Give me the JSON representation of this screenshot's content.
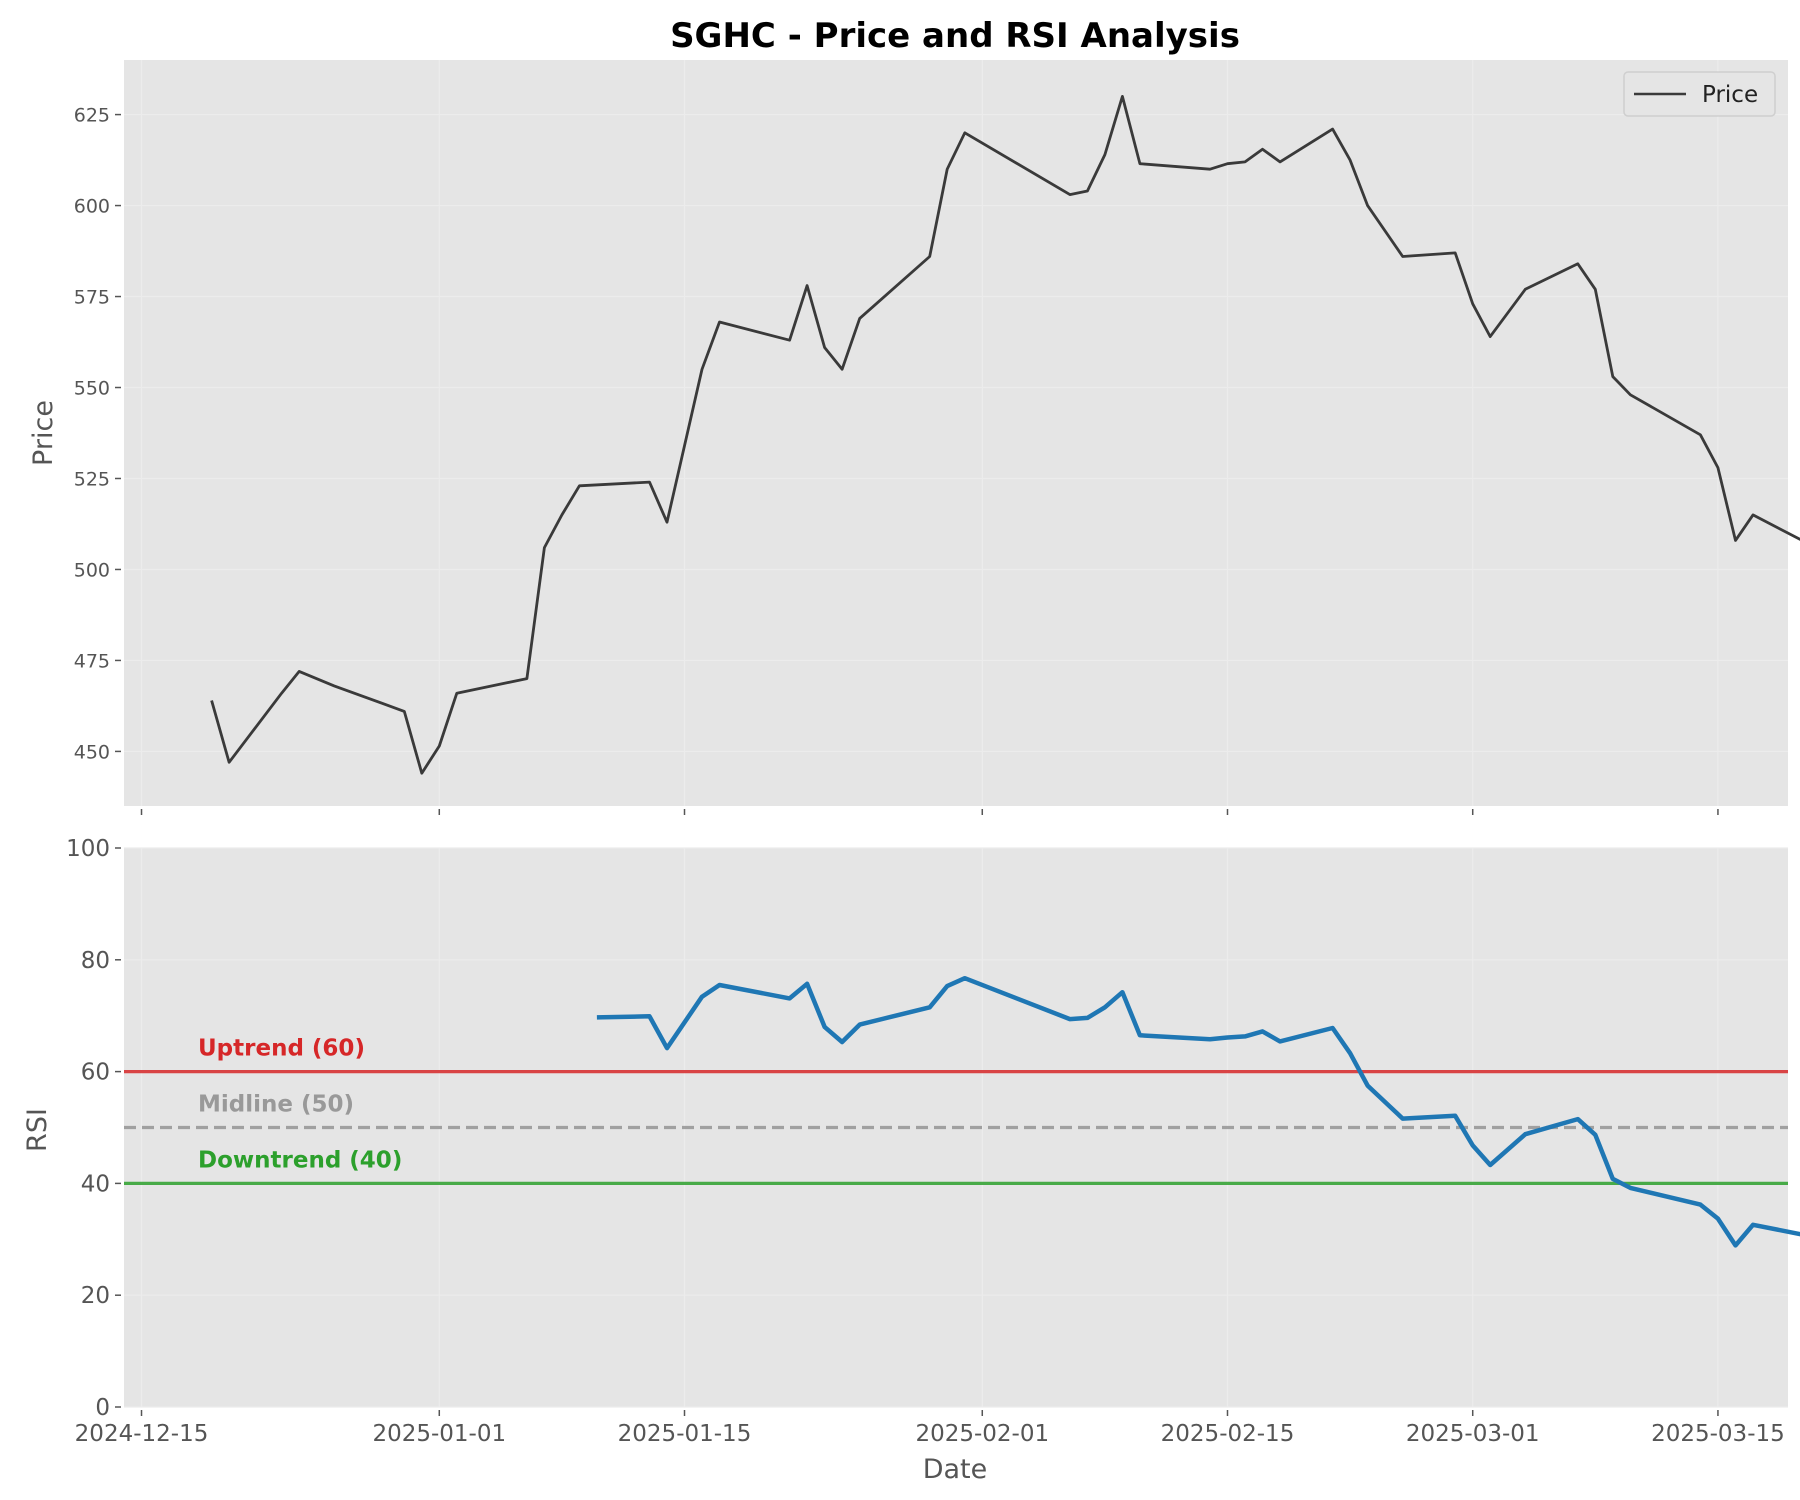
{
  "chart_data": [
    {
      "type": "line",
      "title": "SGHC - Price and RSI Analysis",
      "xlabel": "",
      "ylabel": "Price",
      "ylim": [
        435,
        640
      ],
      "yticks": [
        450,
        475,
        500,
        525,
        550,
        575,
        600,
        625
      ],
      "grid": true,
      "legend": "top-right",
      "series": [
        {
          "name": "Price",
          "color": "#3a3a3a",
          "points": [
            [
              "2024-12-19",
              464
            ],
            [
              "2024-12-20",
              447
            ],
            [
              "2024-12-23",
              466
            ],
            [
              "2024-12-24",
              472
            ],
            [
              "2024-12-26",
              468
            ],
            [
              "2024-12-30",
              461
            ],
            [
              "2024-12-31",
              444
            ],
            [
              "2025-01-01",
              451.5
            ],
            [
              "2025-01-02",
              466
            ],
            [
              "2025-01-06",
              470
            ],
            [
              "2025-01-07",
              506
            ],
            [
              "2025-01-08",
              515
            ],
            [
              "2025-01-09",
              523
            ],
            [
              "2025-01-13",
              524
            ],
            [
              "2025-01-14",
              513
            ],
            [
              "2025-01-16",
              555
            ],
            [
              "2025-01-17",
              568
            ],
            [
              "2025-01-21",
              563
            ],
            [
              "2025-01-22",
              578
            ],
            [
              "2025-01-23",
              561
            ],
            [
              "2025-01-24",
              555
            ],
            [
              "2025-01-25",
              569
            ],
            [
              "2025-01-29",
              586
            ],
            [
              "2025-01-30",
              610
            ],
            [
              "2025-01-31",
              620
            ],
            [
              "2025-02-06",
              603
            ],
            [
              "2025-02-07",
              604
            ],
            [
              "2025-02-08",
              614
            ],
            [
              "2025-02-09",
              630
            ],
            [
              "2025-02-10",
              611.5
            ],
            [
              "2025-02-14",
              610
            ],
            [
              "2025-02-15",
              611.5
            ],
            [
              "2025-02-16",
              612
            ],
            [
              "2025-02-17",
              615.5
            ],
            [
              "2025-02-18",
              612
            ],
            [
              "2025-02-21",
              621
            ],
            [
              "2025-02-22",
              612.5
            ],
            [
              "2025-02-23",
              600
            ],
            [
              "2025-02-25",
              586
            ],
            [
              "2025-02-28",
              587
            ],
            [
              "2025-03-01",
              573
            ],
            [
              "2025-03-02",
              564
            ],
            [
              "2025-03-04",
              577
            ],
            [
              "2025-03-07",
              584
            ],
            [
              "2025-03-08",
              577
            ],
            [
              "2025-03-09",
              553
            ],
            [
              "2025-03-10",
              548
            ],
            [
              "2025-03-14",
              537
            ],
            [
              "2025-03-15",
              528
            ],
            [
              "2025-03-16",
              508
            ],
            [
              "2025-03-17",
              515
            ],
            [
              "2025-03-21",
              505
            ]
          ]
        }
      ]
    },
    {
      "type": "line",
      "title": "",
      "xlabel": "Date",
      "ylabel": "RSI",
      "ylim": [
        0,
        100
      ],
      "yticks": [
        0,
        20,
        40,
        60,
        80,
        100
      ],
      "xticks": [
        "2024-12-15",
        "2025-01-01",
        "2025-01-15",
        "2025-02-01",
        "2025-02-15",
        "2025-03-01",
        "2025-03-15"
      ],
      "xlim": [
        "2024-12-14",
        "2025-03-19"
      ],
      "grid": true,
      "series": [
        {
          "name": "",
          "color": "#1f77b4",
          "points": [
            [
              "2025-01-10",
              69.7
            ],
            [
              "2025-01-13",
              69.9
            ],
            [
              "2025-01-14",
              64.2
            ],
            [
              "2025-01-16",
              73.4
            ],
            [
              "2025-01-17",
              75.5
            ],
            [
              "2025-01-21",
              73.1
            ],
            [
              "2025-01-22",
              75.7
            ],
            [
              "2025-01-23",
              68.0
            ],
            [
              "2025-01-24",
              65.3
            ],
            [
              "2025-01-25",
              68.4
            ],
            [
              "2025-01-29",
              71.5
            ],
            [
              "2025-01-30",
              75.3
            ],
            [
              "2025-01-31",
              76.7
            ],
            [
              "2025-02-06",
              69.4
            ],
            [
              "2025-02-07",
              69.6
            ],
            [
              "2025-02-08",
              71.5
            ],
            [
              "2025-02-09",
              74.2
            ],
            [
              "2025-02-10",
              66.5
            ],
            [
              "2025-02-14",
              65.8
            ],
            [
              "2025-02-15",
              66.1
            ],
            [
              "2025-02-16",
              66.3
            ],
            [
              "2025-02-17",
              67.2
            ],
            [
              "2025-02-18",
              65.4
            ],
            [
              "2025-02-21",
              67.8
            ],
            [
              "2025-02-22",
              63.3
            ],
            [
              "2025-02-23",
              57.5
            ],
            [
              "2025-02-25",
              51.6
            ],
            [
              "2025-02-28",
              52.1
            ],
            [
              "2025-03-01",
              46.8
            ],
            [
              "2025-03-02",
              43.3
            ],
            [
              "2025-03-04",
              48.8
            ],
            [
              "2025-03-07",
              51.5
            ],
            [
              "2025-03-08",
              48.7
            ],
            [
              "2025-03-09",
              40.8
            ],
            [
              "2025-03-10",
              39.2
            ],
            [
              "2025-03-14",
              36.2
            ],
            [
              "2025-03-15",
              33.7
            ],
            [
              "2025-03-16",
              28.9
            ],
            [
              "2025-03-17",
              32.6
            ],
            [
              "2025-03-21",
              30.1
            ]
          ]
        }
      ],
      "reference_lines": [
        {
          "value": 60,
          "label": "Uptrend (60)",
          "color": "#d62728",
          "style": "solid"
        },
        {
          "value": 50,
          "label": "Midline (50)",
          "color": "#999999",
          "style": "dashed"
        },
        {
          "value": 40,
          "label": "Downtrend (40)",
          "color": "#2ca02c",
          "style": "solid"
        }
      ]
    }
  ]
}
